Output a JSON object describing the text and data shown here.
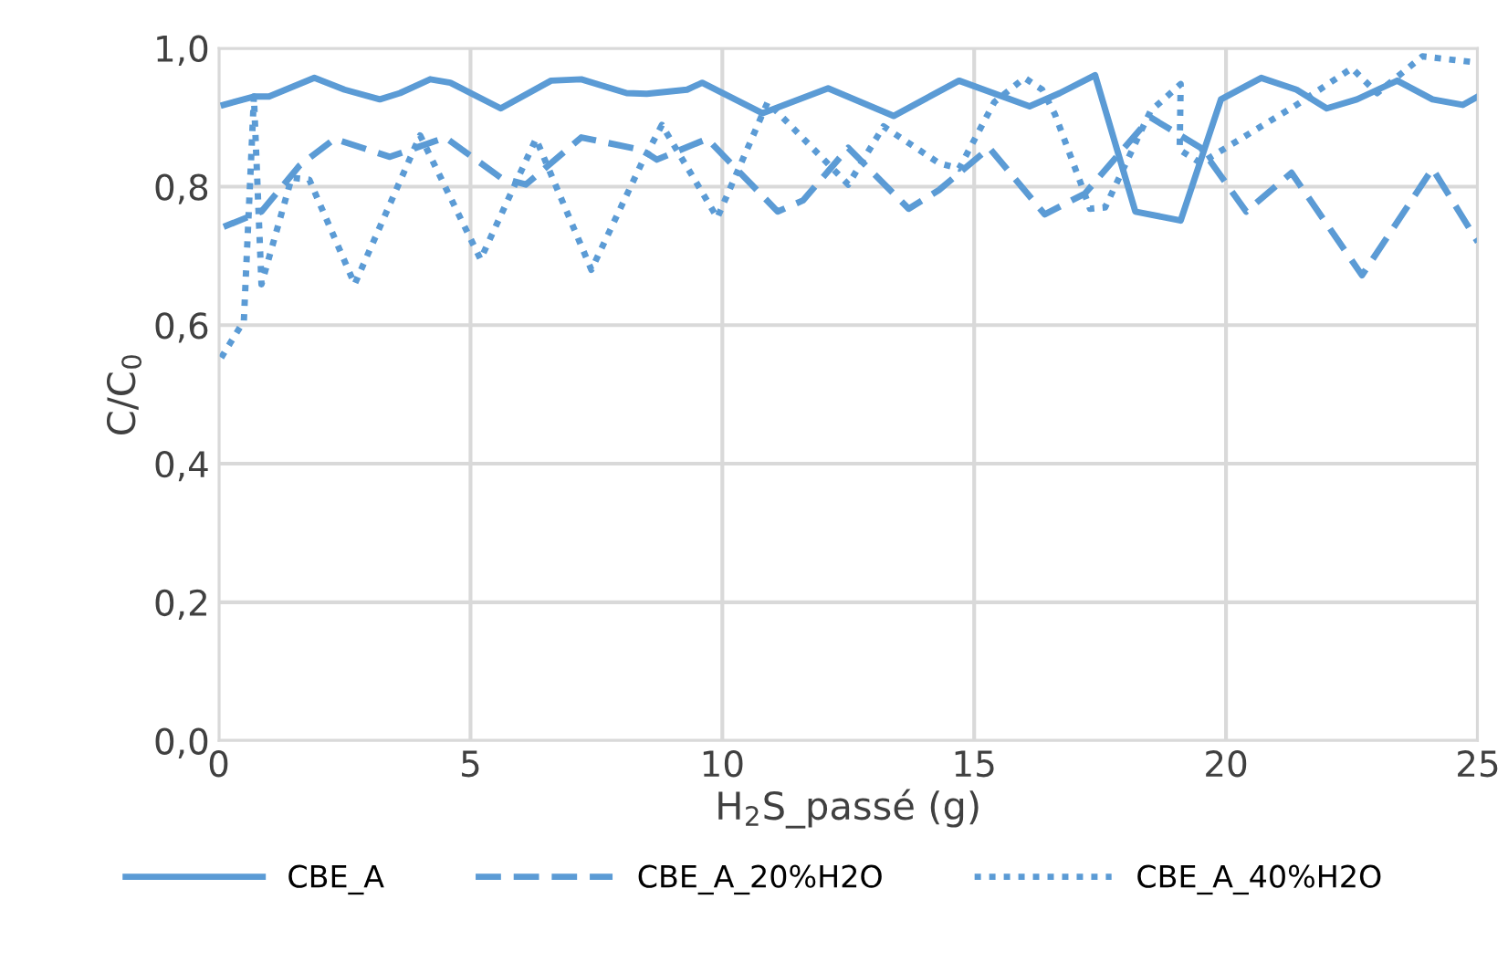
{
  "chart_data": {
    "type": "line",
    "xlabel": "H$_{2}$S_passé (g)",
    "ylabel": "C/C$_{0}$",
    "xlim": [
      0,
      25
    ],
    "xticks": [
      0,
      5,
      10,
      15,
      20,
      25
    ],
    "ylim": [
      0,
      1
    ],
    "yticks": [
      {
        "value": 0,
        "label": "0,0"
      },
      {
        "value": 0.2,
        "label": "0,2"
      },
      {
        "value": 0.4,
        "label": "0,4"
      },
      {
        "value": 0.6,
        "label": "0,6"
      },
      {
        "value": 0.8,
        "label": "0,8"
      },
      {
        "value": 1.0,
        "label": "1,0"
      }
    ],
    "grid": true,
    "legend": "bottom",
    "marker": "none",
    "series": [
      {
        "name": "CBE_A",
        "color": "#5b9bd5",
        "line_style": "solid",
        "x": [
          0.1,
          0.7,
          1.0,
          1.9,
          2.5,
          3.2,
          3.6,
          4.2,
          4.6,
          5.6,
          6.6,
          7.2,
          8.1,
          8.5,
          9.3,
          9.6,
          10.8,
          12.1,
          13.4,
          14.7,
          16.1,
          16.7,
          17.4,
          18.2,
          19.1,
          19.9,
          20.7,
          21.4,
          22.0,
          22.6,
          23.4,
          24.1,
          24.7,
          25.0
        ],
        "values": [
          0.918,
          0.93,
          0.93,
          0.957,
          0.94,
          0.926,
          0.935,
          0.955,
          0.95,
          0.913,
          0.953,
          0.955,
          0.935,
          0.934,
          0.94,
          0.95,
          0.906,
          0.942,
          0.902,
          0.953,
          0.916,
          0.935,
          0.961,
          0.764,
          0.751,
          0.926,
          0.957,
          0.94,
          0.913,
          0.926,
          0.953,
          0.926,
          0.918,
          0.93
        ]
      },
      {
        "name": "CBE_A_20%H2O",
        "color": "#5b9bd5",
        "line_style": "dashed",
        "x": [
          0.1,
          0.85,
          1.6,
          2.3,
          3.4,
          4.5,
          5.6,
          6.1,
          7.2,
          8.4,
          8.7,
          9.7,
          11.1,
          11.6,
          12.5,
          13.7,
          14.3,
          15.3,
          16.4,
          17.2,
          18.5,
          19.5,
          20.4,
          21.3,
          22.7,
          24.1,
          25.0
        ],
        "values": [
          0.742,
          0.764,
          0.83,
          0.869,
          0.843,
          0.871,
          0.813,
          0.803,
          0.871,
          0.853,
          0.839,
          0.869,
          0.764,
          0.78,
          0.856,
          0.768,
          0.795,
          0.856,
          0.76,
          0.79,
          0.9,
          0.856,
          0.764,
          0.82,
          0.672,
          0.826,
          0.72
        ]
      },
      {
        "name": "CBE_A_40%H2O",
        "color": "#5b9bd5",
        "line_style": "dotted",
        "x": [
          0.05,
          0.5,
          0.7,
          0.85,
          1.45,
          1.8,
          2.7,
          4.0,
          5.2,
          6.3,
          7.4,
          8.4,
          8.8,
          9.9,
          10.9,
          12.5,
          13.2,
          14.3,
          14.7,
          15.4,
          16.0,
          16.35,
          16.6,
          17.1,
          17.3,
          17.6,
          18.5,
          19.1,
          19.08,
          19.5,
          21.4,
          22.5,
          23.0,
          23.9,
          25.0
        ],
        "values": [
          0.553,
          0.606,
          0.93,
          0.659,
          0.813,
          0.81,
          0.659,
          0.874,
          0.695,
          0.869,
          0.68,
          0.834,
          0.889,
          0.755,
          0.922,
          0.803,
          0.887,
          0.834,
          0.826,
          0.922,
          0.957,
          0.94,
          0.905,
          0.808,
          0.768,
          0.77,
          0.909,
          0.948,
          0.853,
          0.834,
          0.918,
          0.971,
          0.935,
          0.988,
          0.979
        ]
      }
    ]
  }
}
